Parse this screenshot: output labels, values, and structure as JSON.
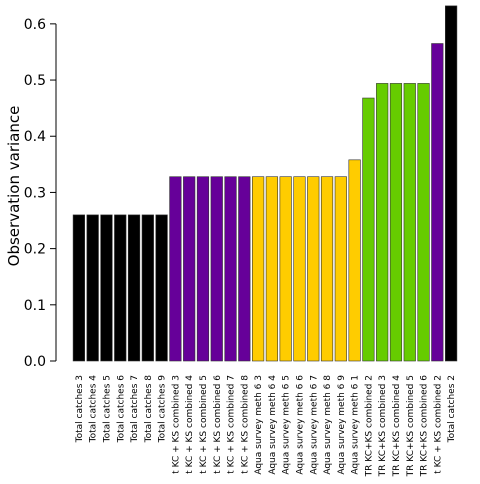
{
  "chart_data": {
    "type": "bar",
    "title": "",
    "xlabel": "",
    "ylabel": "Observation variance",
    "ylim": [
      0,
      0.63
    ],
    "yticks": [
      0.0,
      0.1,
      0.2,
      0.3,
      0.4,
      0.5,
      0.6
    ],
    "ytick_labels": [
      "0.0",
      "0.1",
      "0.2",
      "0.3",
      "0.4",
      "0.5",
      "0.6"
    ],
    "grid": false,
    "legend": "none",
    "categories": [
      "Total catches 3",
      "Total catches 4",
      "Total catches 5",
      "Total catches 6",
      "Total catches 7",
      "Total catches 8",
      "Total catches 9",
      "t KC + KS combined 3",
      "t KC + KS combined 4",
      "t KC + KS combined 5",
      "t KC + KS combined 6",
      "t KC + KS combined 7",
      "t KC + KS combined 8",
      "Aqua survey meth 6 3",
      "Aqua survey meth 6 4",
      "Aqua survey meth 6 5",
      "Aqua survey meth 6 6",
      "Aqua survey meth 6 7",
      "Aqua survey meth 6 8",
      "Aqua survey meth 6 9",
      "Aqua survey meth 6 1",
      "TR KC+KS combined 2",
      "TR KC+KS combined 3",
      "TR KC+KS combined 4",
      "TR KC+KS combined 5",
      "TR KC+KS combined 6",
      "t KC + KS combined 2",
      "Total catches 2"
    ],
    "values": [
      0.26,
      0.26,
      0.26,
      0.26,
      0.26,
      0.26,
      0.26,
      0.328,
      0.328,
      0.328,
      0.328,
      0.328,
      0.328,
      0.328,
      0.328,
      0.328,
      0.328,
      0.328,
      0.328,
      0.328,
      0.358,
      0.468,
      0.494,
      0.494,
      0.494,
      0.494,
      0.565,
      0.632
    ],
    "colors": [
      "#000000",
      "#000000",
      "#000000",
      "#000000",
      "#000000",
      "#000000",
      "#000000",
      "#660099",
      "#660099",
      "#660099",
      "#660099",
      "#660099",
      "#660099",
      "#FFCC00",
      "#FFCC00",
      "#FFCC00",
      "#FFCC00",
      "#FFCC00",
      "#FFCC00",
      "#FFCC00",
      "#FFCC00",
      "#66CC00",
      "#66CC00",
      "#66CC00",
      "#66CC00",
      "#66CC00",
      "#660099",
      "#000000"
    ]
  }
}
